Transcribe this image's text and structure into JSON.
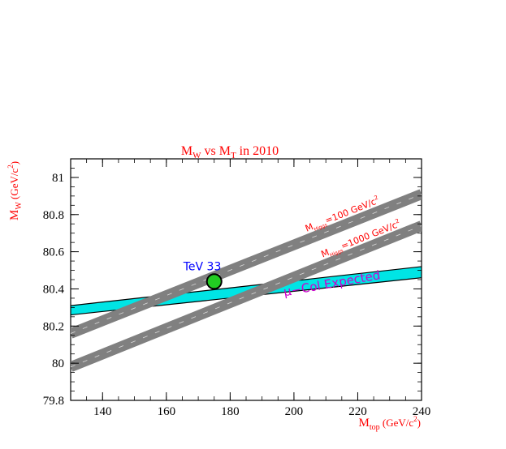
{
  "chart_data": {
    "type": "line",
    "title": "M",
    "title_sub1": "W",
    "title_mid": " vs M",
    "title_sub2": "T",
    "title_end": " in 2010",
    "xlabel": "M",
    "xlabel_sub": "top",
    "xlabel_unit": " (GeV/c",
    "xlabel_sup": "2",
    "xlabel_close": ")",
    "ylabel": "M",
    "ylabel_sub": "W",
    "ylabel_unit": " (GeV/c",
    "ylabel_sup": "2",
    "ylabel_close": ")",
    "xlim": [
      130,
      240
    ],
    "ylim": [
      79.8,
      81.1
    ],
    "x_ticks": [
      140,
      160,
      180,
      200,
      220,
      240
    ],
    "x_tick_labels": [
      "140",
      "160",
      "180",
      "200",
      "220",
      "240"
    ],
    "y_ticks": [
      79.8,
      80,
      80.2,
      80.4,
      80.6,
      80.8,
      81
    ],
    "y_tick_labels": [
      "79.8",
      "80",
      "80.2",
      "80.4",
      "80.6",
      "80.8",
      "81"
    ],
    "series": [
      {
        "name": "MHiggs=100 GeV/c2",
        "band": "gray",
        "x": [
          130,
          240
        ],
        "y": [
          80.16,
          80.91
        ],
        "label_prefix": "M",
        "label_sub": "Higgs",
        "label_main": "=100 GeV/c",
        "label_sup": "2"
      },
      {
        "name": "MHiggs=1000 GeV/c2",
        "band": "gray",
        "x": [
          130,
          240
        ],
        "y": [
          79.98,
          80.74
        ],
        "label_prefix": "M",
        "label_sub": "Higgs",
        "label_main": "=1000 GeV/c",
        "label_sup": "2"
      },
      {
        "name": "μ−Col Expected",
        "band": "cyan",
        "x": [
          130,
          240
        ],
        "y_upper": [
          80.31,
          80.52
        ],
        "y_lower": [
          80.26,
          80.46
        ],
        "label": "μ−Col Expected"
      }
    ],
    "points": [
      {
        "name": "TeV 33",
        "x": 175,
        "y": 80.44,
        "color": "#22cc22",
        "label": "TeV 33"
      }
    ],
    "colors": {
      "title": "#ff0000",
      "axis_label": "#ff0000",
      "band_label": "#ff0000",
      "gray_band": "#808080",
      "cyan_band": "#00e5e5",
      "mucol_label": "#cc00cc",
      "tev_label": "#0000ff"
    }
  }
}
